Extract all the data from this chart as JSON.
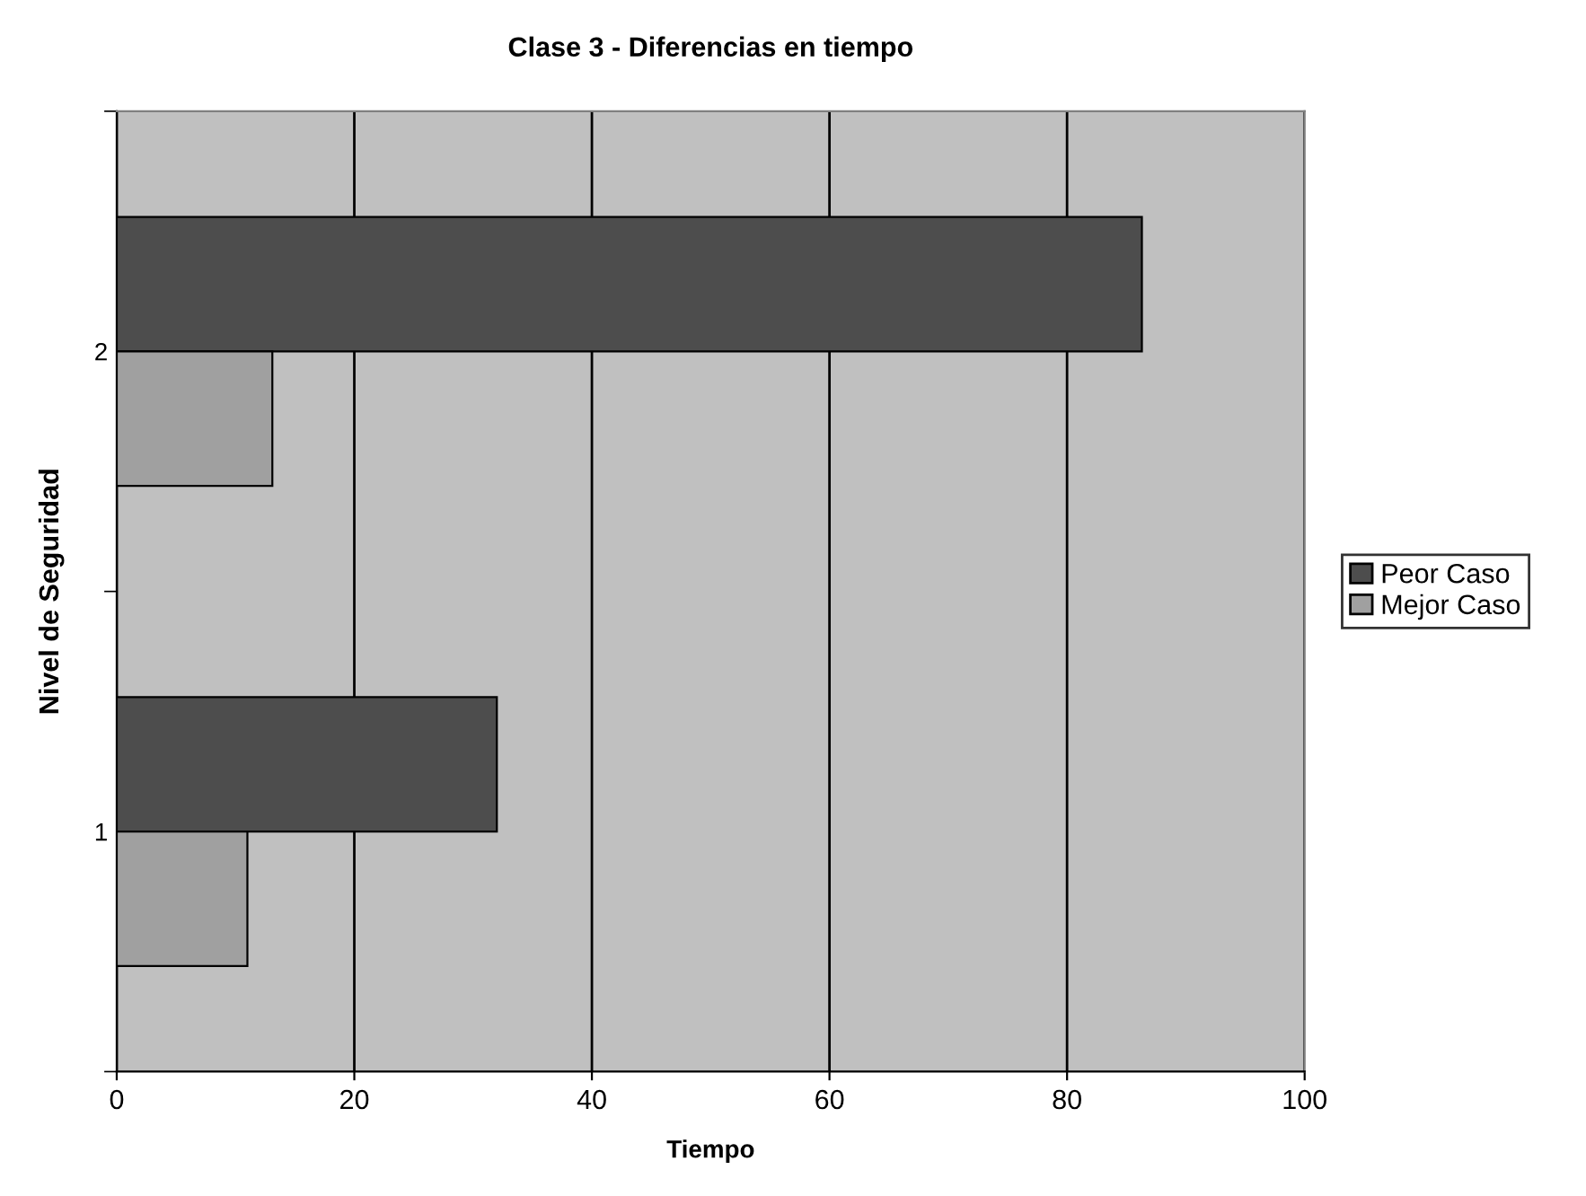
{
  "chart_data": {
    "type": "bar",
    "orientation": "horizontal",
    "title": "Clase 3 - Diferencias en tiempo",
    "xlabel": "Tiempo",
    "ylabel": "Nivel de Seguridad",
    "categories": [
      "2",
      "1"
    ],
    "series": [
      {
        "name": "Peor Caso",
        "color": "#4d4d4d",
        "values": [
          86.3,
          32
        ]
      },
      {
        "name": "Mejor Caso",
        "color": "#a0a0a0",
        "values": [
          13.1,
          11
        ]
      }
    ],
    "xlim": [
      0,
      100
    ],
    "xticks": [
      0,
      20,
      40,
      60,
      80,
      100
    ],
    "grid": "x",
    "legend": "right"
  }
}
